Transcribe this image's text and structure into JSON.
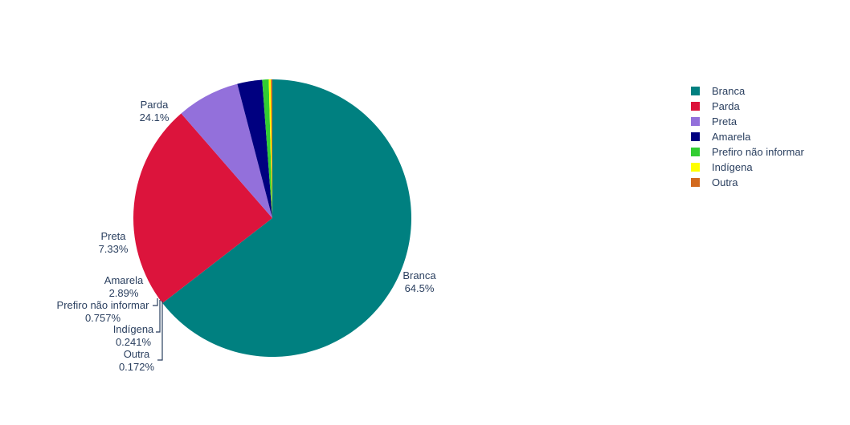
{
  "chart_data": {
    "type": "pie",
    "labels": [
      "Branca",
      "Parda",
      "Preta",
      "Amarela",
      "Prefiro não informar",
      "Indígena",
      "Outra"
    ],
    "values": [
      64.5,
      24.1,
      7.33,
      2.89,
      0.757,
      0.241,
      0.172
    ],
    "value_labels": [
      "64.5%",
      "24.1%",
      "7.33%",
      "2.89%",
      "0.757%",
      "0.241%",
      "0.172%"
    ],
    "colors": [
      "#008080",
      "#DC143C",
      "#9370DB",
      "#000080",
      "#32CD32",
      "#FFFF00",
      "#D2691E"
    ],
    "direction": "clockwise",
    "rotation_start": "top",
    "legend_placement": "top-right",
    "title": ""
  }
}
